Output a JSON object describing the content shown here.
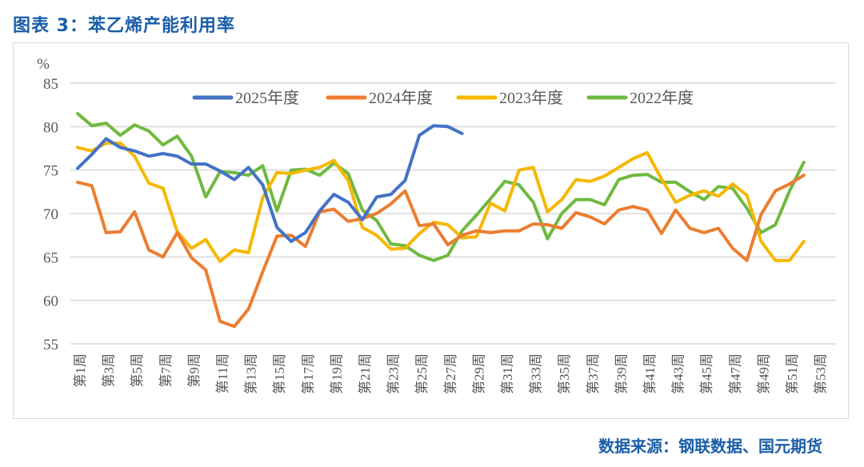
{
  "title": "图表 3：苯乙烯产能利用率",
  "source": "数据来源：钢联数据、国元期货",
  "chart_data": {
    "type": "line",
    "title": "",
    "ylabel": "%",
    "xlabel": "",
    "ylim": [
      55,
      85
    ],
    "yticks": [
      55,
      60,
      65,
      70,
      75,
      80,
      85
    ],
    "grid": true,
    "legend_placement": "top",
    "x_tick_labels": [
      "第1周",
      "第3周",
      "第5周",
      "第7周",
      "第9周",
      "第11周",
      "第13周",
      "第15周",
      "第17周",
      "第19周",
      "第21周",
      "第23周",
      "第25周",
      "第27周",
      "第29周",
      "第31周",
      "第33周",
      "第35周",
      "第37周",
      "第39周",
      "第41周",
      "第43周",
      "第45周",
      "第47周",
      "第49周",
      "第51周",
      "第53周"
    ],
    "x_weeks": 53,
    "series": [
      {
        "name": "2025年度",
        "color": "#4472c4",
        "values": [
          75.2,
          76.8,
          78.6,
          77.6,
          77.2,
          76.6,
          76.9,
          76.6,
          75.7,
          75.7,
          74.9,
          73.9,
          75.3,
          73.3,
          68.4,
          66.8,
          67.8,
          70.3,
          72.2,
          71.3,
          69.3,
          71.9,
          72.2,
          73.8,
          79.0,
          80.1,
          80.0,
          79.2
        ]
      },
      {
        "name": "2024年度",
        "color": "#ed7d31",
        "values": [
          73.6,
          73.2,
          67.8,
          67.9,
          70.2,
          65.8,
          65.0,
          67.8,
          64.9,
          63.5,
          57.6,
          57.0,
          59.0,
          63.3,
          67.4,
          67.5,
          66.2,
          70.2,
          70.5,
          69.1,
          69.4,
          70.0,
          71.1,
          72.6,
          68.6,
          68.8,
          66.4,
          67.5,
          68.0,
          67.8,
          68.0,
          68.0,
          68.8,
          68.7,
          68.3,
          70.1,
          69.6,
          68.8,
          70.4,
          70.8,
          70.4,
          67.7,
          70.4,
          68.3,
          67.8,
          68.3,
          66.0,
          64.6,
          69.9,
          72.6,
          73.4,
          74.4
        ]
      },
      {
        "name": "2023年度",
        "color": "#f5b800",
        "values": [
          77.6,
          77.2,
          78.1,
          78.1,
          76.6,
          73.5,
          72.9,
          67.9,
          66.0,
          67.0,
          64.5,
          65.8,
          65.5,
          71.8,
          74.7,
          74.6,
          75.0,
          75.3,
          76.1,
          73.8,
          68.4,
          67.5,
          65.9,
          66.0,
          67.7,
          69.0,
          68.7,
          67.2,
          67.3,
          71.2,
          70.3,
          75.0,
          75.3,
          70.2,
          71.6,
          73.9,
          73.7,
          74.3,
          75.3,
          76.3,
          77.0,
          74.0,
          71.3,
          72.1,
          72.6,
          72.0,
          73.4,
          72.1,
          66.8,
          64.6,
          64.6,
          66.8
        ]
      },
      {
        "name": "2022年度",
        "color": "#70b93f",
        "values": [
          81.5,
          80.1,
          80.4,
          79.0,
          80.2,
          79.5,
          77.9,
          78.9,
          76.6,
          71.9,
          74.8,
          74.7,
          74.4,
          75.5,
          70.3,
          75.0,
          75.1,
          74.4,
          75.8,
          74.6,
          70.4,
          69.2,
          66.5,
          66.3,
          65.2,
          64.6,
          65.2,
          68.0,
          69.8,
          71.7,
          73.7,
          73.3,
          71.3,
          67.1,
          70.0,
          71.6,
          71.6,
          71.0,
          73.9,
          74.4,
          74.5,
          73.6,
          73.6,
          72.5,
          71.6,
          73.1,
          72.9,
          70.6,
          67.8,
          68.7,
          72.6,
          75.9
        ]
      }
    ]
  }
}
